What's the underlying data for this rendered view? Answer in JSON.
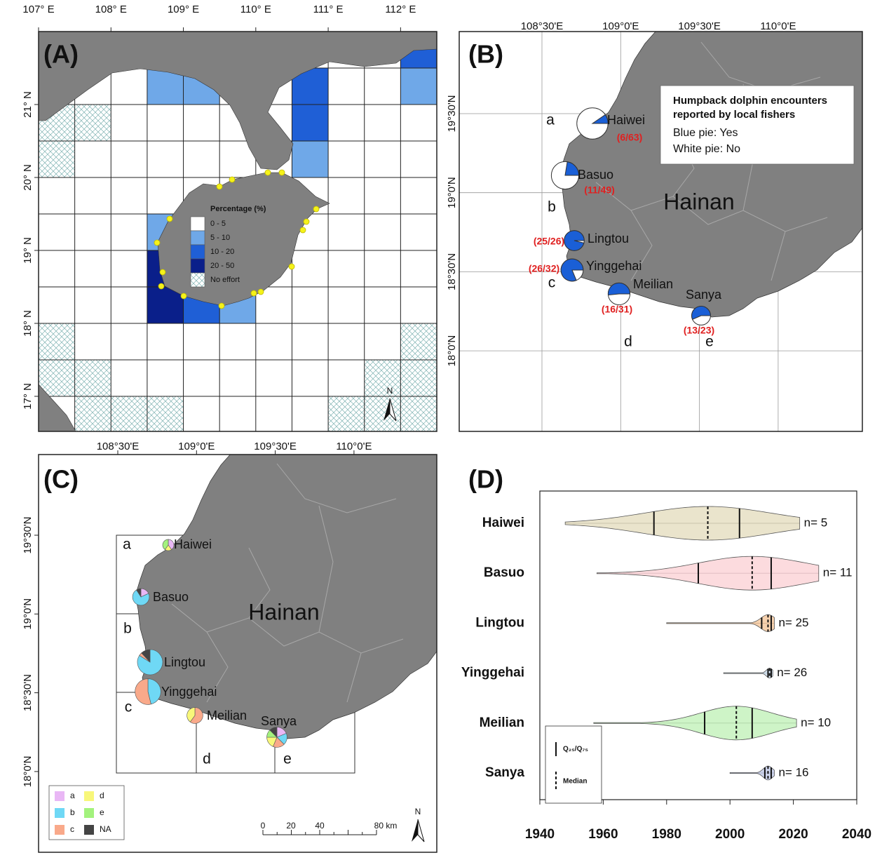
{
  "panel_a": {
    "label": "(A)",
    "x_labels": [
      "107° E",
      "108° E",
      "109° E",
      "110° E",
      "111° E",
      "112° E"
    ],
    "y_labels": [
      "21° N",
      "20° N",
      "19° N",
      "18° N",
      "17° N"
    ],
    "legend": {
      "title": "Percentage (%)",
      "items": [
        "0 - 5",
        "5 - 10",
        "10 - 20",
        "20 - 50",
        "No effort"
      ],
      "colors": [
        "#ffffff",
        "#6fa8e8",
        "#1f5fd6",
        "#0a1f8a",
        "hatch"
      ]
    },
    "cells": [
      [
        0,
        0,
        0,
        0,
        0,
        0,
        0,
        0,
        0,
        0,
        2
      ],
      [
        0,
        0,
        0,
        1,
        1,
        0,
        0,
        2,
        0,
        0,
        1
      ],
      [
        4,
        4,
        0,
        0,
        0,
        0,
        0,
        2,
        0,
        0,
        0
      ],
      [
        4,
        0,
        0,
        0,
        0,
        0,
        0,
        1,
        0,
        0,
        0
      ],
      [
        0,
        0,
        0,
        0,
        0,
        0,
        0,
        0,
        0,
        0,
        0
      ],
      [
        0,
        0,
        0,
        1,
        0,
        0,
        0,
        0,
        0,
        0,
        0
      ],
      [
        0,
        0,
        0,
        3,
        0,
        0,
        0,
        0,
        0,
        0,
        0
      ],
      [
        0,
        0,
        0,
        3,
        2,
        1,
        0,
        0,
        0,
        0,
        0
      ],
      [
        4,
        0,
        0,
        0,
        0,
        0,
        0,
        0,
        0,
        0,
        4
      ],
      [
        4,
        4,
        0,
        0,
        0,
        0,
        0,
        0,
        0,
        4,
        4
      ],
      [
        0,
        4,
        4,
        4,
        0,
        0,
        0,
        0,
        4,
        4,
        4
      ]
    ],
    "north": "N"
  },
  "panel_b": {
    "label": "(B)",
    "x_labels": [
      "108°30'E",
      "109°0'E",
      "109°30'E",
      "110°0'E"
    ],
    "y_labels": [
      "19°30'N",
      "19°0'N",
      "18°30'N",
      "18°0'N"
    ],
    "legend_title": [
      "Humpback dolphin encounters",
      "reported by local fishers"
    ],
    "legend_items": [
      "Blue pie: Yes",
      "White pie: No"
    ],
    "island": "Hainan",
    "regions": [
      "a",
      "b",
      "c",
      "d",
      "e"
    ],
    "yes_color": "#1a5fd6",
    "no_color": "#ffffff",
    "sites": [
      {
        "name": "Haiwei",
        "yes": 6,
        "total": 63,
        "label": "(6/63)"
      },
      {
        "name": "Basuo",
        "yes": 11,
        "total": 49,
        "label": "(11/49)"
      },
      {
        "name": "Lingtou",
        "yes": 25,
        "total": 26,
        "label": "(25/26)"
      },
      {
        "name": "Yinggehai",
        "yes": 26,
        "total": 32,
        "label": "(26/32)"
      },
      {
        "name": "Meilian",
        "yes": 16,
        "total": 31,
        "label": "(16/31)"
      },
      {
        "name": "Sanya",
        "yes": 13,
        "total": 23,
        "label": "(13/23)"
      }
    ]
  },
  "panel_c": {
    "label": "(C)",
    "x_labels": [
      "108°30'E",
      "109°0'E",
      "109°30'E",
      "110°0'E"
    ],
    "y_labels": [
      "19°30'N",
      "19°0'N",
      "18°30'N",
      "18°0'N"
    ],
    "island": "Hainan",
    "regions": [
      "a",
      "b",
      "c",
      "d",
      "e"
    ],
    "categories": [
      "a",
      "b",
      "c",
      "d",
      "e",
      "NA"
    ],
    "colors": [
      "#e9b7f5",
      "#6fd8f5",
      "#f9a98a",
      "#f8f77a",
      "#a3f27d",
      "#444444"
    ],
    "sites": [
      {
        "name": "Haiwei",
        "counts": [
          2,
          0,
          0,
          1,
          2,
          0
        ]
      },
      {
        "name": "Basuo",
        "counts": [
          2,
          8,
          0,
          0,
          0,
          1
        ]
      },
      {
        "name": "Lingtou",
        "counts": [
          0,
          21,
          1,
          0,
          0,
          3
        ]
      },
      {
        "name": "Yinggehai",
        "counts": [
          0,
          12,
          14,
          0,
          0,
          0
        ]
      },
      {
        "name": "Meilian",
        "counts": [
          0,
          0,
          6,
          4,
          0,
          0
        ]
      },
      {
        "name": "Sanya",
        "counts": [
          3,
          3,
          3,
          3,
          2,
          2
        ]
      }
    ],
    "scale_labels": [
      "0",
      "20",
      "40",
      "80 km"
    ],
    "north": "N"
  },
  "panel_d": {
    "label": "(D)",
    "xlim": [
      1940,
      2040
    ],
    "xticks": [
      1940,
      1960,
      1980,
      2000,
      2020,
      2040
    ],
    "legend": [
      "Q₂₅/Q₇₅",
      "Median"
    ],
    "groups": [
      {
        "name": "Haiwei",
        "color": "#e6dfc3",
        "min": 1948,
        "q25": 1976,
        "median": 1993,
        "q75": 2003,
        "max": 2022,
        "n": 5,
        "n_label": "n= 5"
      },
      {
        "name": "Basuo",
        "color": "#fcd5d8",
        "min": 1958,
        "q25": 1990,
        "median": 2007,
        "q75": 2013,
        "max": 2028,
        "n": 11,
        "n_label": "n= 11"
      },
      {
        "name": "Lingtou",
        "color": "#f4c9a0",
        "min": 1980,
        "q25": 2010,
        "median": 2012,
        "q75": 2013,
        "max": 2014,
        "n": 25,
        "n_label": "n= 25"
      },
      {
        "name": "Yinggehai",
        "color": "#cfe0f0",
        "min": 1998,
        "q25": 2012,
        "median": 2012.5,
        "q75": 2013,
        "max": 2013.5,
        "n": 26,
        "n_label": "n= 26"
      },
      {
        "name": "Meilian",
        "color": "#c6f2bd",
        "min": 1957,
        "q25": 1992,
        "median": 2002,
        "q75": 2007,
        "max": 2021,
        "n": 10,
        "n_label": "n= 10"
      },
      {
        "name": "Sanya",
        "color": "#c3cbe8",
        "min": 2000,
        "q25": 2011,
        "median": 2012,
        "q75": 2013,
        "max": 2014,
        "n": 16,
        "n_label": "n= 16"
      }
    ]
  }
}
